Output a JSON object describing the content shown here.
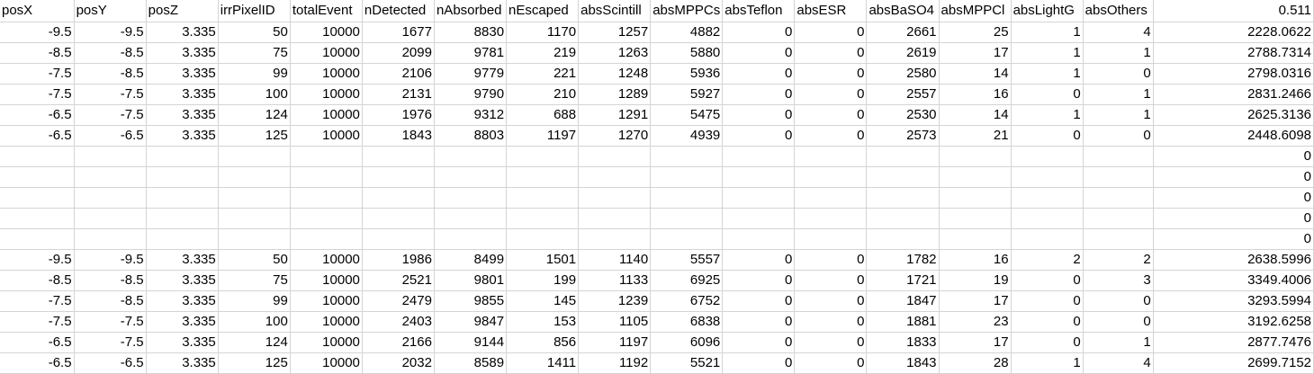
{
  "sheet": {
    "header": [
      "posX",
      "posY",
      "posZ",
      "irrPixelID",
      "totalEvent",
      "nDetected",
      "nAbsorbed",
      "nEscaped",
      "absScintill",
      "absMPPCs",
      "absTeflon",
      "absESR",
      "absBaSO4",
      "absMPPCl",
      "absLightG",
      "absOthers",
      "0.511"
    ],
    "rows": [
      [
        "-9.5",
        "-9.5",
        "3.335",
        "50",
        "10000",
        "1677",
        "8830",
        "1170",
        "1257",
        "4882",
        "0",
        "0",
        "2661",
        "25",
        "1",
        "4",
        "2228.0622"
      ],
      [
        "-8.5",
        "-8.5",
        "3.335",
        "75",
        "10000",
        "2099",
        "9781",
        "219",
        "1263",
        "5880",
        "0",
        "0",
        "2619",
        "17",
        "1",
        "1",
        "2788.7314"
      ],
      [
        "-7.5",
        "-8.5",
        "3.335",
        "99",
        "10000",
        "2106",
        "9779",
        "221",
        "1248",
        "5936",
        "0",
        "0",
        "2580",
        "14",
        "1",
        "0",
        "2798.0316"
      ],
      [
        "-7.5",
        "-7.5",
        "3.335",
        "100",
        "10000",
        "2131",
        "9790",
        "210",
        "1289",
        "5927",
        "0",
        "0",
        "2557",
        "16",
        "0",
        "1",
        "2831.2466"
      ],
      [
        "-6.5",
        "-7.5",
        "3.335",
        "124",
        "10000",
        "1976",
        "9312",
        "688",
        "1291",
        "5475",
        "0",
        "0",
        "2530",
        "14",
        "1",
        "1",
        "2625.3136"
      ],
      [
        "-6.5",
        "-6.5",
        "3.335",
        "125",
        "10000",
        "1843",
        "8803",
        "1197",
        "1270",
        "4939",
        "0",
        "0",
        "2573",
        "21",
        "0",
        "0",
        "2448.6098"
      ],
      [
        "",
        "",
        "",
        "",
        "",
        "",
        "",
        "",
        "",
        "",
        "",
        "",
        "",
        "",
        "",
        "",
        "0"
      ],
      [
        "",
        "",
        "",
        "",
        "",
        "",
        "",
        "",
        "",
        "",
        "",
        "",
        "",
        "",
        "",
        "",
        "0"
      ],
      [
        "",
        "",
        "",
        "",
        "",
        "",
        "",
        "",
        "",
        "",
        "",
        "",
        "",
        "",
        "",
        "",
        "0"
      ],
      [
        "",
        "",
        "",
        "",
        "",
        "",
        "",
        "",
        "",
        "",
        "",
        "",
        "",
        "",
        "",
        "",
        "0"
      ],
      [
        "",
        "",
        "",
        "",
        "",
        "",
        "",
        "",
        "",
        "",
        "",
        "",
        "",
        "",
        "",
        "",
        "0"
      ],
      [
        "-9.5",
        "-9.5",
        "3.335",
        "50",
        "10000",
        "1986",
        "8499",
        "1501",
        "1140",
        "5557",
        "0",
        "0",
        "1782",
        "16",
        "2",
        "2",
        "2638.5996"
      ],
      [
        "-8.5",
        "-8.5",
        "3.335",
        "75",
        "10000",
        "2521",
        "9801",
        "199",
        "1133",
        "6925",
        "0",
        "0",
        "1721",
        "19",
        "0",
        "3",
        "3349.4006"
      ],
      [
        "-7.5",
        "-8.5",
        "3.335",
        "99",
        "10000",
        "2479",
        "9855",
        "145",
        "1239",
        "6752",
        "0",
        "0",
        "1847",
        "17",
        "0",
        "0",
        "3293.5994"
      ],
      [
        "-7.5",
        "-7.5",
        "3.335",
        "100",
        "10000",
        "2403",
        "9847",
        "153",
        "1105",
        "6838",
        "0",
        "0",
        "1881",
        "23",
        "0",
        "0",
        "3192.6258"
      ],
      [
        "-6.5",
        "-7.5",
        "3.335",
        "124",
        "10000",
        "2166",
        "9144",
        "856",
        "1197",
        "6096",
        "0",
        "0",
        "1833",
        "17",
        "0",
        "1",
        "2877.7476"
      ],
      [
        "-6.5",
        "-6.5",
        "3.335",
        "125",
        "10000",
        "2032",
        "8589",
        "1411",
        "1192",
        "5521",
        "0",
        "0",
        "1843",
        "28",
        "1",
        "4",
        "2699.7152"
      ]
    ]
  }
}
